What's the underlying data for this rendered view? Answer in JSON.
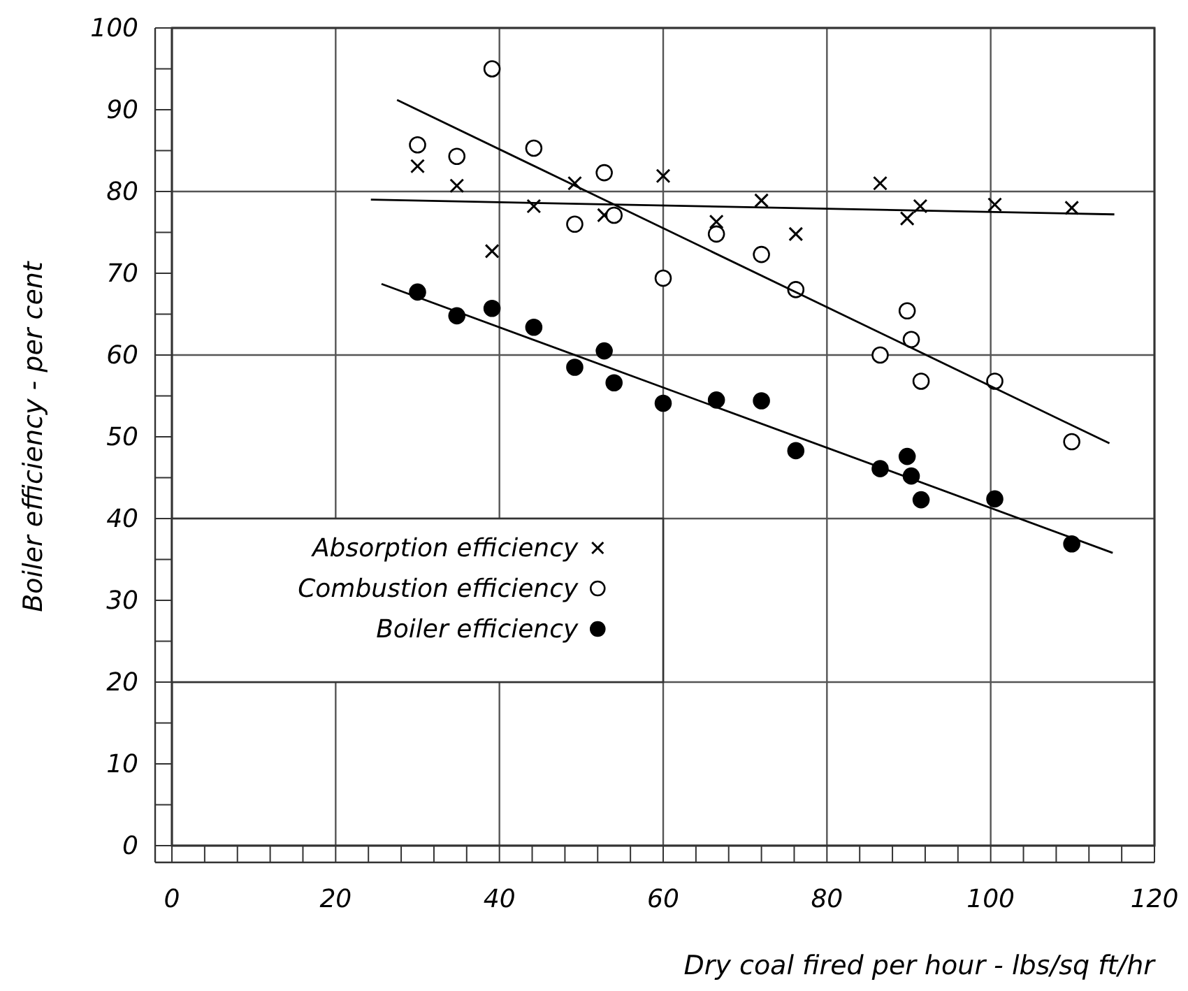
{
  "chart_data": {
    "type": "scatter",
    "xlabel": "Dry coal fired per hour - lbs/sq ft/hr",
    "ylabel": "Boiler efficiency - per cent",
    "xlim": [
      0,
      120
    ],
    "ylim": [
      0,
      100
    ],
    "xticks": [
      0,
      {
        "value": 4,
        "label": null
      },
      {
        "value": 8,
        "label": null
      },
      {
        "value": 12,
        "label": null
      },
      {
        "value": 16,
        "label": null
      },
      20,
      {
        "value": 24,
        "label": null
      },
      {
        "value": 28,
        "label": null
      },
      {
        "value": 32,
        "label": null
      },
      {
        "value": 36,
        "label": null
      },
      40,
      {
        "value": 44,
        "label": null
      },
      {
        "value": 48,
        "label": null
      },
      {
        "value": 52,
        "label": null
      },
      {
        "value": 56,
        "label": null
      },
      60,
      {
        "value": 64,
        "label": null
      },
      {
        "value": 68,
        "label": null
      },
      {
        "value": 72,
        "label": null
      },
      {
        "value": 76,
        "label": null
      },
      80,
      {
        "value": 84,
        "label": null
      },
      {
        "value": 88,
        "label": null
      },
      {
        "value": 92,
        "label": null
      },
      {
        "value": 96,
        "label": null
      },
      100,
      {
        "value": 104,
        "label": null
      },
      {
        "value": 108,
        "label": null
      },
      {
        "value": 112,
        "label": null
      },
      {
        "value": 116,
        "label": null
      },
      120
    ],
    "yticks": [
      0,
      {
        "value": 5,
        "label": null
      },
      10,
      {
        "value": 15,
        "label": null
      },
      20,
      {
        "value": 25,
        "label": null
      },
      30,
      {
        "value": 35,
        "label": null
      },
      40,
      {
        "value": 45,
        "label": null
      },
      50,
      {
        "value": 55,
        "label": null
      },
      60,
      {
        "value": 65,
        "label": null
      },
      70,
      {
        "value": 75,
        "label": null
      },
      80,
      {
        "value": 85,
        "label": null
      },
      90,
      {
        "value": 95,
        "label": null
      },
      100
    ],
    "grid": true,
    "legend": "left",
    "series": [
      {
        "name": "Absorption efficiency",
        "color": "#000000",
        "marker": "cross",
        "x": [
          30,
          34.8,
          39.1,
          44.2,
          49.2,
          52.8,
          60,
          66.5,
          72,
          76.2,
          86.5,
          89.8,
          91.4,
          100.5,
          109.9
        ],
        "values": [
          83.1,
          80.7,
          72.7,
          78.2,
          81,
          77.1,
          81.9,
          76.3,
          78.9,
          74.8,
          81,
          76.7,
          78.2,
          78.4,
          78
        ]
      },
      {
        "name": "Combustion efficiency",
        "color": "#ffffff",
        "marker": "circle",
        "x": [
          30,
          34.8,
          39.1,
          44.2,
          49.2,
          52.8,
          54,
          60,
          66.5,
          72,
          76.2,
          86.5,
          89.8,
          90.3,
          91.5,
          100.5,
          109.9
        ],
        "values": [
          85.7,
          84.3,
          95,
          85.3,
          76,
          82.3,
          77.1,
          69.4,
          74.8,
          72.3,
          68,
          60,
          65.4,
          61.9,
          56.8,
          56.8,
          49.4
        ]
      },
      {
        "name": "Boiler efficiency",
        "color": "#000000",
        "marker": "circle",
        "x": [
          30,
          34.8,
          39.1,
          44.2,
          49.2,
          52.8,
          54,
          60,
          66.5,
          72,
          76.2,
          86.5,
          89.8,
          90.3,
          91.5,
          100.5,
          109.9
        ],
        "values": [
          67.7,
          64.8,
          65.7,
          63.4,
          58.5,
          60.5,
          56.6,
          54.1,
          54.5,
          54.4,
          48.3,
          46.1,
          47.6,
          45.2,
          42.3,
          42.4,
          36.9
        ]
      },
      {
        "type": "line",
        "color": "#000000",
        "marker": "none",
        "x": [
          24.3,
          115.1
        ],
        "values": [
          79,
          77.2
        ]
      },
      {
        "type": "line",
        "color": "#000000",
        "marker": "none",
        "x": [
          27.5,
          114.5
        ],
        "values": [
          91.2,
          49.2
        ]
      },
      {
        "type": "line",
        "color": "#000000",
        "marker": "none",
        "x": [
          25.6,
          114.9
        ],
        "values": [
          68.7,
          35.8
        ]
      }
    ]
  }
}
